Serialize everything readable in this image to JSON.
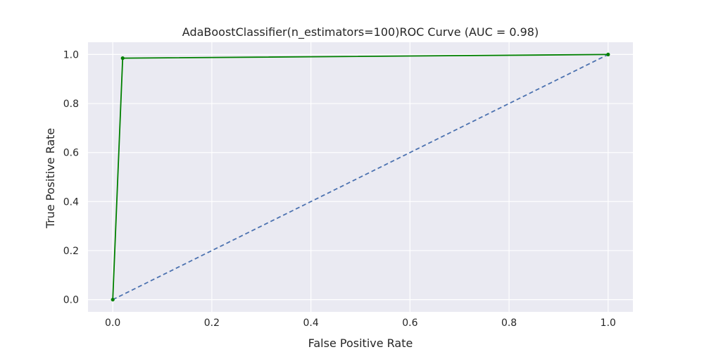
{
  "chart_data": {
    "type": "line",
    "title": "AdaBoostClassifier(n_estimators=100)ROC Curve (AUC = 0.98)",
    "xlabel": "False Positive Rate",
    "ylabel": "True Positive Rate",
    "xlim": [
      -0.05,
      1.05
    ],
    "ylim": [
      -0.05,
      1.05
    ],
    "x_ticks": [
      "0.0",
      "0.2",
      "0.4",
      "0.6",
      "0.8",
      "1.0"
    ],
    "y_ticks": [
      "0.0",
      "0.2",
      "0.4",
      "0.6",
      "0.8",
      "1.0"
    ],
    "grid": true,
    "series": [
      {
        "style": "solid",
        "color": "#008000",
        "markers": true,
        "x": [
          0.0,
          0.02,
          1.0
        ],
        "y": [
          0.0,
          0.985,
          1.0
        ]
      },
      {
        "style": "dashed",
        "color": "#4c72b0",
        "markers": false,
        "x": [
          0.0,
          1.0
        ],
        "y": [
          0.0,
          1.0
        ]
      }
    ]
  },
  "colors": {
    "plot_background": "#eaeaf2",
    "grid": "#ffffff",
    "text": "#262626"
  }
}
